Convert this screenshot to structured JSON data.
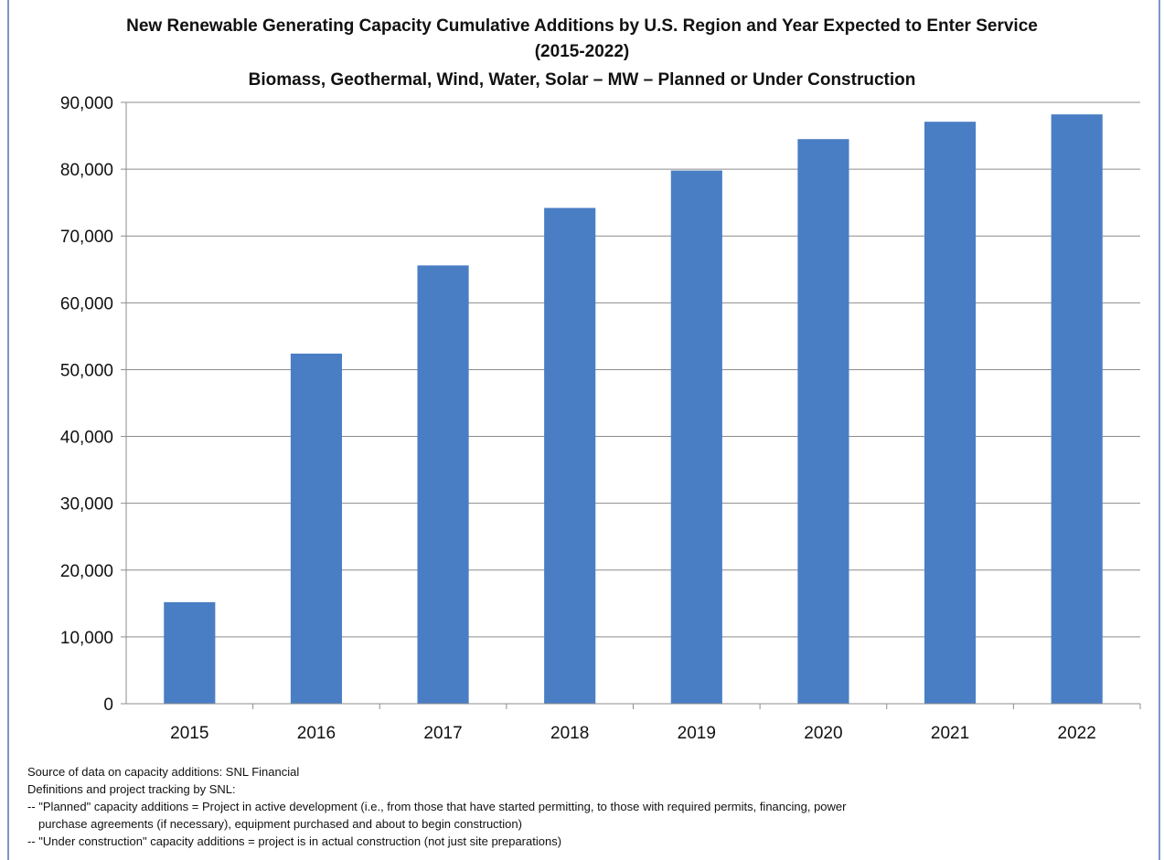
{
  "chart_data": {
    "type": "bar",
    "title_lines": [
      "New Renewable Generating Capacity Cumulative Additions by U.S. Region and Year Expected to Enter Service",
      "(2015-2022)",
      "Biomass, Geothermal, Wind, Water, Solar – MW – Planned or Under Construction"
    ],
    "categories": [
      "2015",
      "2016",
      "2017",
      "2018",
      "2019",
      "2020",
      "2021",
      "2022"
    ],
    "values": [
      15200,
      52400,
      65600,
      74200,
      79800,
      84500,
      87100,
      88200
    ],
    "ylim": [
      0,
      90000
    ],
    "yticks": [
      0,
      10000,
      20000,
      30000,
      40000,
      50000,
      60000,
      70000,
      80000,
      90000
    ],
    "ytick_labels": [
      "0",
      "10,000",
      "20,000",
      "30,000",
      "40,000",
      "50,000",
      "60,000",
      "70,000",
      "80,000",
      "90,000"
    ],
    "xlabel": "",
    "ylabel": "",
    "grid": true,
    "bar_color": "#4a7ec4"
  },
  "notes": {
    "source": "Source of data on capacity additions:  SNL Financial",
    "definitions": "Definitions and project tracking by SNL:",
    "planned_line1": "-- \"Planned\" capacity additions = Project in active development (i.e.,  from those that have started permitting, to those with required permits, financing, power",
    "planned_line2": "purchase agreements (if necessary), equipment purchased and about to begin construction)",
    "under_construction": "-- \"Under construction\" capacity additions = project is in actual construction (not just site preparations)"
  }
}
